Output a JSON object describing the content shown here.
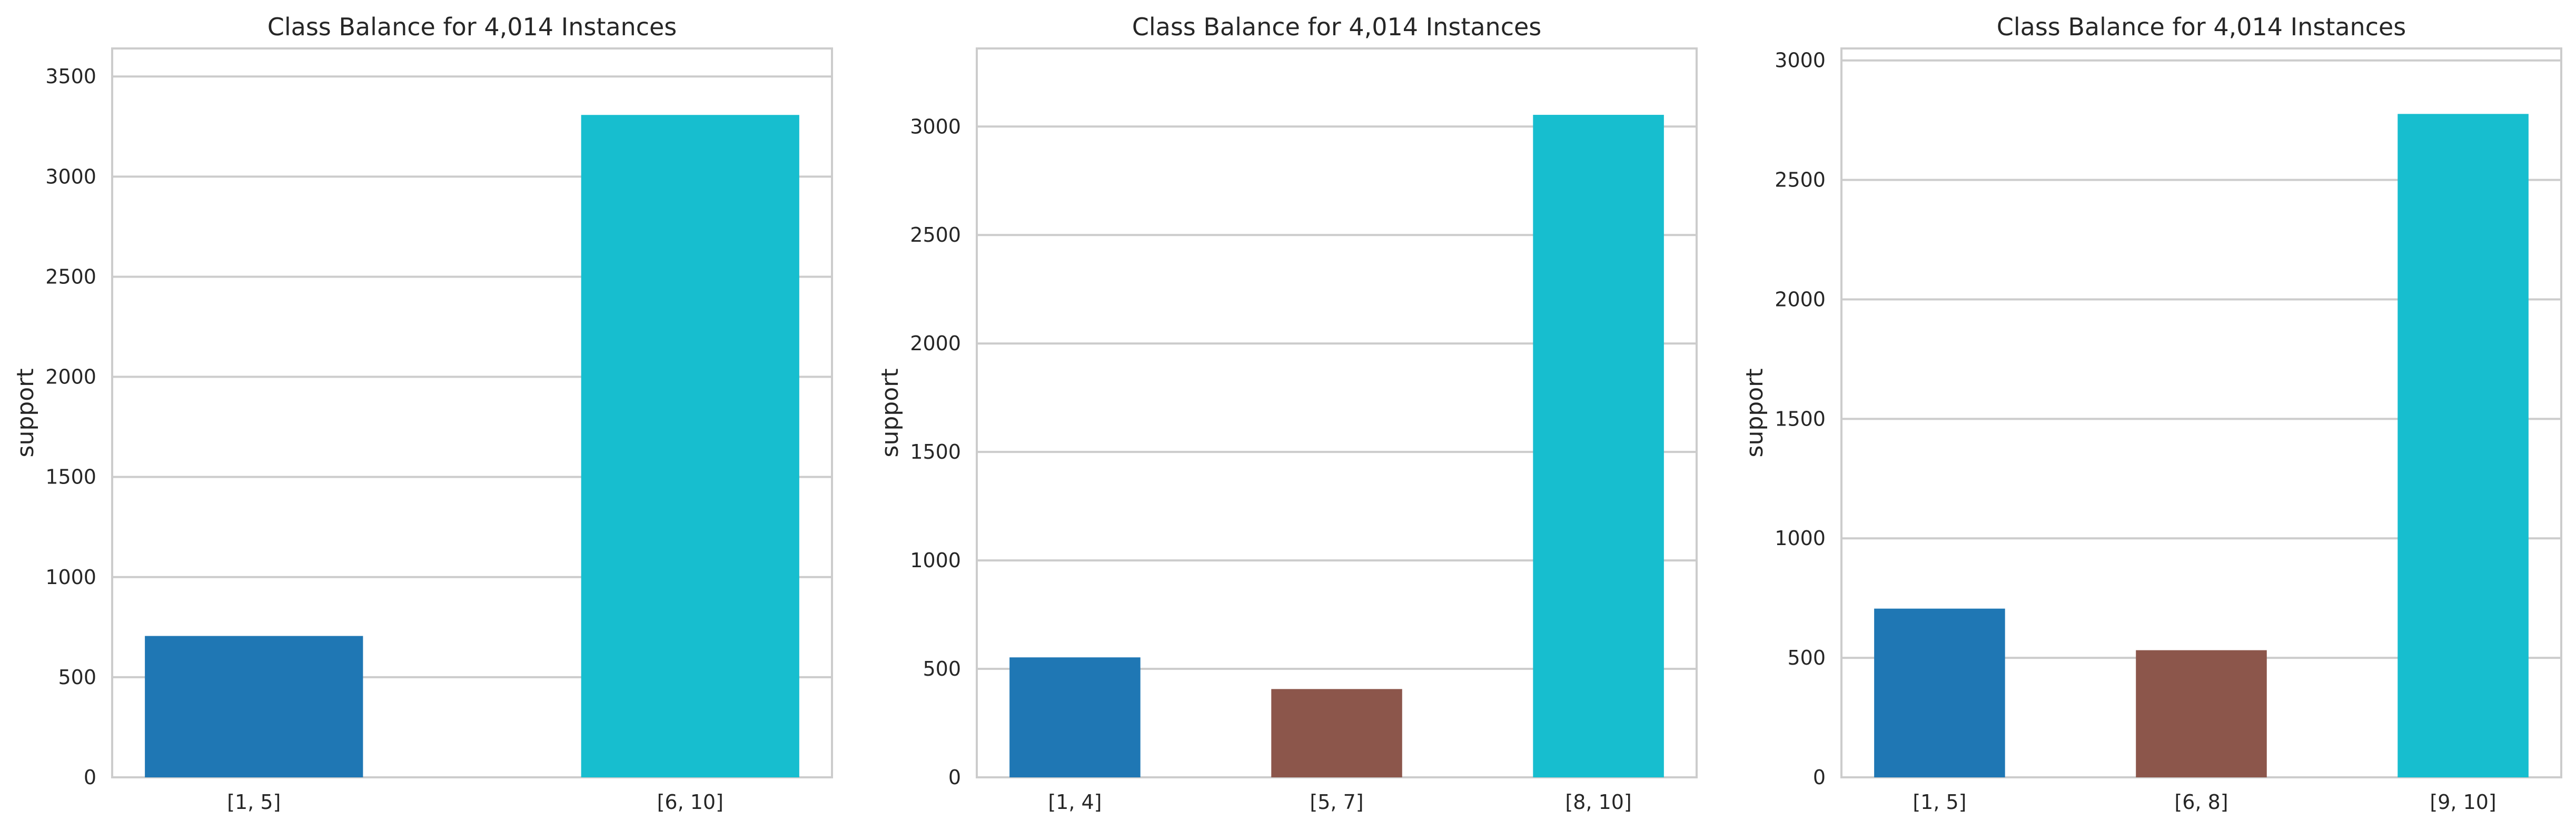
{
  "chart_data": [
    {
      "type": "bar",
      "title": "Class Balance for 4,014 Instances",
      "xlabel": "",
      "ylabel": "support",
      "categories": [
        "[1, 5]",
        "[6, 10]"
      ],
      "values": [
        706,
        3308
      ],
      "colors": [
        "#1f77b4",
        "#17becf"
      ],
      "ylim": [
        0,
        3640
      ],
      "yticks": [
        0,
        500,
        1000,
        1500,
        2000,
        2500,
        3000,
        3500
      ],
      "grid": true,
      "grid_axis": "y"
    },
    {
      "type": "bar",
      "title": "Class Balance for 4,014 Instances",
      "xlabel": "",
      "ylabel": "support",
      "categories": [
        "[1, 4]",
        "[5, 7]",
        "[8, 10]"
      ],
      "values": [
        553,
        407,
        3054
      ],
      "colors": [
        "#1f77b4",
        "#8c564b",
        "#17becf"
      ],
      "ylim": [
        0,
        3360
      ],
      "yticks": [
        0,
        500,
        1000,
        1500,
        2000,
        2500,
        3000
      ],
      "grid": true,
      "grid_axis": "y"
    },
    {
      "type": "bar",
      "title": "Class Balance for 4,014 Instances",
      "xlabel": "",
      "ylabel": "support",
      "categories": [
        "[1, 5]",
        "[6, 8]",
        "[9, 10]"
      ],
      "values": [
        706,
        532,
        2776
      ],
      "colors": [
        "#1f77b4",
        "#8c564b",
        "#17becf"
      ],
      "ylim": [
        0,
        3050
      ],
      "yticks": [
        0,
        500,
        1000,
        1500,
        2000,
        2500,
        3000
      ],
      "grid": true,
      "grid_axis": "y"
    }
  ]
}
